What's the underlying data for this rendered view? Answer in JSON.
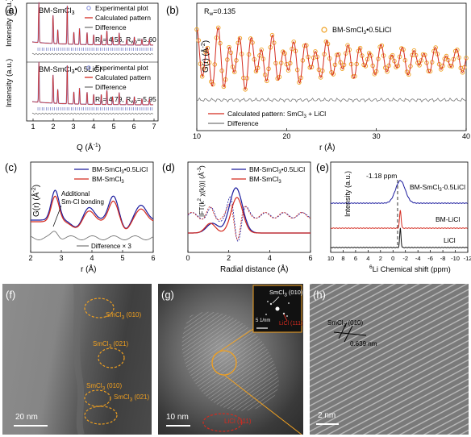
{
  "panels": {
    "a": {
      "label": "(a)",
      "top": {
        "title": "BM-SmCl",
        "title_sub": "3",
        "legend": [
          "Experimental plot",
          "Calculated pattern",
          "Difference"
        ],
        "rp": "R",
        "rp_sub": "p",
        "rp_val": "= 4.56, R",
        "rwp_sub": "wp",
        "rwp_val": "=  5.60"
      },
      "bottom": {
        "title": "BM-SmCl",
        "title_sub": "3",
        "title_rest": "•0.5LiCl",
        "legend": [
          "Experimental plot",
          "Calculated pattern",
          "Difference"
        ],
        "rp": "R",
        "rp_sub": "p",
        "rp_val": "= 4.79, R",
        "rwp_sub": "wp",
        "rwp_val": "=  5.95"
      },
      "xlabel": "Q (Å",
      "xlabel_sup": "-1",
      "xlabel_end": ")",
      "ylabel": "Intensity (a.u.)",
      "xticks": [
        "1",
        "2",
        "3",
        "4",
        "5",
        "6",
        "7"
      ]
    },
    "b": {
      "label": "(b)",
      "rw": "R",
      "rw_sub": "w",
      "rw_val": "=0.135",
      "legend_main": "BM-SmCl",
      "legend_sub": "3",
      "legend_rest": "•0.5LiCl",
      "legend_calc": "Calculated pattern: SmCl",
      "legend_calc_sub": "3",
      "legend_calc_rest": " + LiCl",
      "legend_diff": "Difference",
      "xlabel": "r (Å)",
      "ylabel": "G(r) (Å",
      "ylabel_sup": "-2",
      "ylabel_end": ")",
      "xticks": [
        "10",
        "20",
        "30",
        "40"
      ]
    },
    "c": {
      "label": "(c)",
      "legend": [
        "BM-SmCl",
        "BM-SmCl"
      ],
      "legend_sub": "3",
      "legend_rest": [
        "•0.5LiCl",
        ""
      ],
      "annot1": "Additional",
      "annot2": "Sm-Cl bonding",
      "diff": "Difference × 3",
      "xlabel": "r (Å)",
      "ylabel": "G(r) (Å",
      "ylabel_sup": "-2",
      "ylabel_end": ")",
      "xticks": [
        "2",
        "3",
        "4",
        "5",
        "6"
      ]
    },
    "d": {
      "label": "(d)",
      "legend": [
        "BM-SmCl",
        "BM-SmCl"
      ],
      "legend_sub": "3",
      "legend_rest": [
        "•0.5LiCl",
        ""
      ],
      "xlabel": "Radial distance (Å)",
      "ylabel": "|FT(k",
      "ylabel_sup": "2",
      "ylabel_mid": " χ(k))| (Å",
      "ylabel_sup2": "-3",
      "ylabel_end": ")",
      "xticks": [
        "0",
        "2",
        "4",
        "6"
      ]
    },
    "e": {
      "label": "(e)",
      "peak": "-1.18 ppm",
      "series": [
        "BM-SmCl",
        "BM-LiCl",
        "LiCl"
      ],
      "series0_sub": "3",
      "series0_rest": "·0.5LiCl",
      "xlabel": "Li Chemical shift (ppm)",
      "xlabel_sup": "6",
      "ylabel": "Intensity (a.u.)",
      "xticks": [
        "10",
        "8",
        "6",
        "4",
        "2",
        "0",
        "-2",
        "-4",
        "-6",
        "-8",
        "-10",
        "-12"
      ]
    },
    "f": {
      "label": "(f)",
      "annots": [
        [
          "SmCl",
          "3",
          " (010)"
        ],
        [
          "SmCl",
          "3",
          " (021)"
        ],
        [
          "SmCl",
          "3",
          " (010)"
        ],
        [
          "SmCl",
          "3",
          " (021)"
        ]
      ],
      "scale": "20 nm"
    },
    "g": {
      "label": "(g)",
      "fft1": [
        "SmCl",
        "3",
        " (010)"
      ],
      "fft2": [
        "LiCl (111)"
      ],
      "fft_scale": "5 1/nm",
      "annot": "LiCl (111)",
      "scale": "10 nm"
    },
    "h": {
      "label": "(h)",
      "annot": [
        "SmCl",
        "3",
        " (010)"
      ],
      "spacing": "0.639 nm",
      "scale": "2 nm"
    }
  },
  "colors": {
    "exp": "#7d87d8",
    "calc": "#d42a1f",
    "diff": "#777777",
    "blue": "#1b1b9e",
    "orange": "#f0a020",
    "tick": "#2a3aa8"
  }
}
